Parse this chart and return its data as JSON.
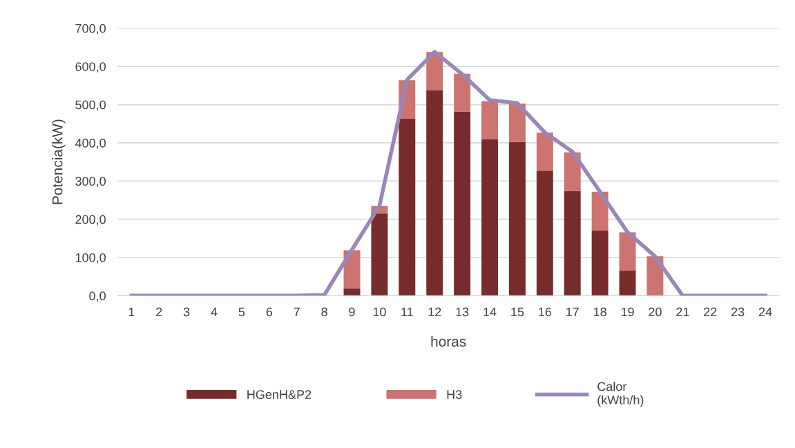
{
  "chart_data": {
    "type": "bar",
    "stacked": true,
    "xlabel": "horas",
    "ylabel": "Potencia(kW)",
    "categories": [
      "1",
      "2",
      "3",
      "4",
      "5",
      "6",
      "7",
      "8",
      "9",
      "10",
      "11",
      "12",
      "13",
      "14",
      "15",
      "16",
      "17",
      "18",
      "19",
      "20",
      "21",
      "22",
      "23",
      "24"
    ],
    "series": [
      {
        "name": "HGenH&P2",
        "color": "#772b2b",
        "values": [
          0,
          0,
          0,
          0,
          0,
          0,
          0,
          0,
          19,
          215,
          464,
          538,
          482,
          409,
          402,
          327,
          274,
          171,
          66,
          0,
          0,
          0,
          0,
          0
        ]
      },
      {
        "name": "H3",
        "color": "#cd7370",
        "values": [
          0,
          0,
          0,
          0,
          0,
          0,
          0,
          0,
          100,
          20,
          100,
          100,
          99,
          100,
          101,
          100,
          101,
          101,
          100,
          103,
          0,
          0,
          0,
          0
        ]
      },
      {
        "name": "Calor\n(kWth/h)",
        "type": "line",
        "color": "#9a87b8",
        "values": [
          0,
          0,
          0,
          0,
          0,
          0,
          0,
          2,
          120,
          235,
          565,
          638,
          580,
          512,
          504,
          427,
          377,
          272,
          166,
          103,
          0,
          0,
          0,
          0
        ]
      }
    ],
    "ylim": [
      0,
      700
    ],
    "yticks": [
      {
        "value": 0,
        "label": "0,0"
      },
      {
        "value": 100,
        "label": "100,0"
      },
      {
        "value": 200,
        "label": "200,0"
      },
      {
        "value": 300,
        "label": "300,0"
      },
      {
        "value": 400,
        "label": "400,0"
      },
      {
        "value": 500,
        "label": "500,0"
      },
      {
        "value": 600,
        "label": "600,0"
      },
      {
        "value": 700,
        "label": "700,0"
      }
    ],
    "grid": "y",
    "legend": "bottom"
  }
}
